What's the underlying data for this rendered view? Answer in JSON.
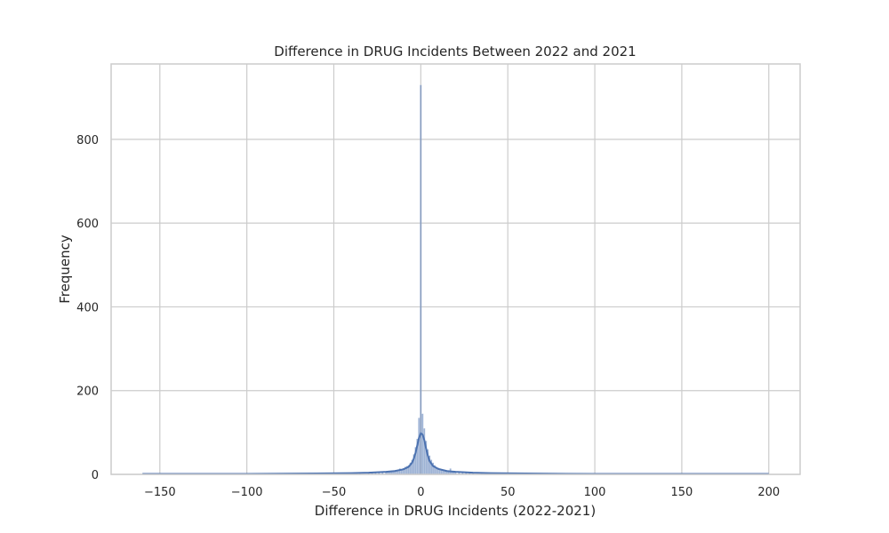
{
  "chart_data": {
    "type": "histogram",
    "title": "Difference in DRUG Incidents Between 2022 and 2021",
    "xlabel": "Difference in DRUG Incidents (2022-2021)",
    "ylabel": "Frequency",
    "xlim": [
      -178,
      218
    ],
    "ylim": [
      0,
      980
    ],
    "xticks": [
      -150,
      -100,
      -50,
      0,
      50,
      100,
      150,
      200
    ],
    "xtick_labels": [
      "−150",
      "−100",
      "−50",
      "0",
      "50",
      "100",
      "150",
      "200"
    ],
    "yticks": [
      0,
      200,
      400,
      600,
      800
    ],
    "ytick_labels": [
      "0",
      "200",
      "400",
      "600",
      "800"
    ],
    "grid": true,
    "bin_width": 1,
    "bins": [
      [
        -160,
        1
      ],
      [
        -120,
        1
      ],
      [
        -90,
        1
      ],
      [
        -80,
        1
      ],
      [
        -70,
        1
      ],
      [
        -60,
        1
      ],
      [
        -55,
        2
      ],
      [
        -50,
        2
      ],
      [
        -45,
        2
      ],
      [
        -40,
        3
      ],
      [
        -35,
        3
      ],
      [
        -30,
        3
      ],
      [
        -28,
        4
      ],
      [
        -26,
        4
      ],
      [
        -24,
        4
      ],
      [
        -22,
        5
      ],
      [
        -20,
        6
      ],
      [
        -19,
        5
      ],
      [
        -18,
        7
      ],
      [
        -17,
        6
      ],
      [
        -16,
        8
      ],
      [
        -15,
        9
      ],
      [
        -14,
        10
      ],
      [
        -13,
        11
      ],
      [
        -12,
        14
      ],
      [
        -11,
        12
      ],
      [
        -10,
        15
      ],
      [
        -9,
        18
      ],
      [
        -8,
        20
      ],
      [
        -7,
        22
      ],
      [
        -6,
        28
      ],
      [
        -5,
        35
      ],
      [
        -4,
        48
      ],
      [
        -3,
        65
      ],
      [
        -2,
        85
      ],
      [
        -1,
        135
      ],
      [
        0,
        930
      ],
      [
        1,
        145
      ],
      [
        2,
        110
      ],
      [
        3,
        80
      ],
      [
        4,
        60
      ],
      [
        5,
        45
      ],
      [
        6,
        35
      ],
      [
        7,
        28
      ],
      [
        8,
        22
      ],
      [
        9,
        18
      ],
      [
        10,
        16
      ],
      [
        11,
        14
      ],
      [
        12,
        12
      ],
      [
        13,
        11
      ],
      [
        14,
        10
      ],
      [
        15,
        9
      ],
      [
        16,
        8
      ],
      [
        17,
        14
      ],
      [
        18,
        7
      ],
      [
        19,
        6
      ],
      [
        20,
        6
      ],
      [
        22,
        5
      ],
      [
        24,
        4
      ],
      [
        26,
        4
      ],
      [
        28,
        3
      ],
      [
        30,
        3
      ],
      [
        35,
        3
      ],
      [
        40,
        2
      ],
      [
        45,
        2
      ],
      [
        50,
        2
      ],
      [
        55,
        2
      ],
      [
        60,
        1
      ],
      [
        65,
        1
      ],
      [
        80,
        1
      ],
      [
        100,
        1
      ],
      [
        130,
        1
      ],
      [
        160,
        1
      ],
      [
        200,
        1
      ]
    ],
    "kde": {
      "x": [
        -160,
        -100,
        -60,
        -40,
        -30,
        -20,
        -15,
        -10,
        -7,
        -5,
        -4,
        -3,
        -2,
        -1,
        0,
        1,
        2,
        3,
        4,
        5,
        7,
        10,
        15,
        20,
        30,
        40,
        60,
        100,
        150,
        200
      ],
      "y": [
        1,
        1,
        2,
        3,
        4,
        6,
        8,
        12,
        18,
        28,
        38,
        52,
        70,
        88,
        98,
        95,
        82,
        62,
        45,
        32,
        20,
        13,
        8,
        6,
        4,
        3,
        2,
        1,
        1,
        1
      ]
    }
  }
}
